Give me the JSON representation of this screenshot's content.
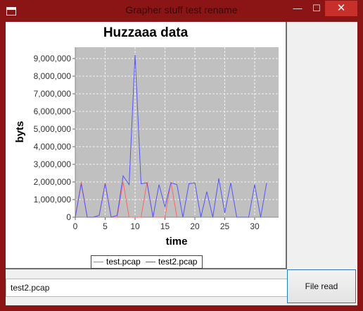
{
  "window": {
    "title": "Grapher stuff test rename",
    "controls": {
      "minimize": "—",
      "maximize": "☐",
      "close": "✕"
    }
  },
  "colors": {
    "frame": "#8b1414",
    "plot_bg": "#c0c0c0",
    "series1": "#ff6666",
    "series2": "#5555ff",
    "close_button": "#c7302a"
  },
  "file_input": {
    "value": "test2.pcap"
  },
  "file_button": {
    "label": "File read"
  },
  "chart_data": {
    "type": "line",
    "title": "Huzzaaa data",
    "xlabel": "time",
    "ylabel": "byts",
    "xlim": [
      0,
      34
    ],
    "ylim": [
      0,
      9500000
    ],
    "xticks": [
      0,
      5,
      10,
      15,
      20,
      25,
      30
    ],
    "xtick_labels": [
      "0",
      "5",
      "10",
      "15",
      "20",
      "25",
      "30"
    ],
    "yticks": [
      0,
      1000000,
      2000000,
      3000000,
      4000000,
      5000000,
      6000000,
      7000000,
      8000000,
      9000000
    ],
    "ytick_labels": [
      "0",
      "1,000,000",
      "2,000,000",
      "3,000,000",
      "4,000,000",
      "5,000,000",
      "6,000,000",
      "7,000,000",
      "8,000,000",
      "9,000,000"
    ],
    "grid": true,
    "legend_position": "bottom",
    "series": [
      {
        "name": "test.pcap",
        "color": "#ff6666",
        "x": [
          0,
          1,
          2,
          3,
          4,
          5,
          6,
          7,
          8,
          9,
          10,
          11,
          12,
          13,
          14,
          15,
          16,
          17
        ],
        "values": [
          0,
          2000000,
          0,
          0,
          100000,
          1950000,
          0,
          0,
          2000000,
          0,
          0,
          0,
          2000000,
          0,
          0,
          0,
          2000000,
          0
        ]
      },
      {
        "name": "test2.pcap",
        "color": "#5555ff",
        "x": [
          0,
          1,
          2,
          3,
          4,
          5,
          6,
          7,
          8,
          9,
          10,
          11,
          12,
          13,
          14,
          15,
          16,
          17,
          18,
          19,
          20,
          21,
          22,
          23,
          24,
          25,
          26,
          27,
          28,
          29,
          30,
          31,
          32
        ],
        "values": [
          0,
          1900000,
          0,
          0,
          100000,
          1900000,
          0,
          100000,
          2350000,
          1850000,
          9200000,
          1900000,
          1950000,
          0,
          1850000,
          600000,
          1950000,
          1850000,
          0,
          1900000,
          1950000,
          0,
          1450000,
          0,
          2200000,
          250000,
          1950000,
          0,
          0,
          0,
          1850000,
          0,
          1950000
        ]
      }
    ]
  }
}
